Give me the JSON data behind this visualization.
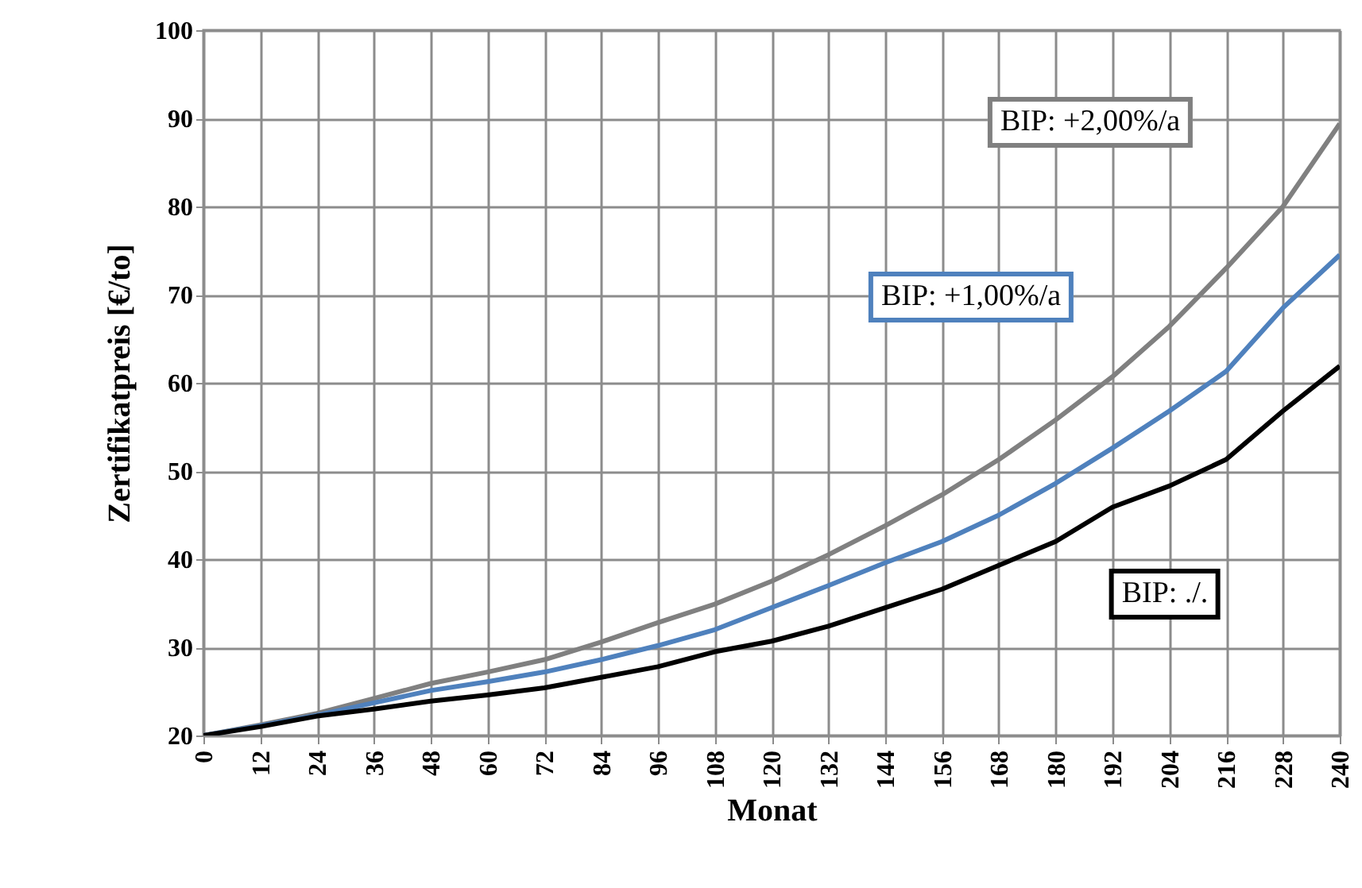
{
  "chart_data": {
    "type": "line",
    "xlabel": "Monat",
    "ylabel": "Zertifikatpreis [€/to]",
    "x": [
      0,
      12,
      24,
      36,
      48,
      60,
      72,
      84,
      96,
      108,
      120,
      132,
      144,
      156,
      168,
      180,
      192,
      204,
      216,
      228,
      240
    ],
    "series": [
      {
        "name": "BIP: +2,00%/a",
        "color": "#808080",
        "values": [
          20,
          21.2,
          22.5,
          24.2,
          25.9,
          27.2,
          28.6,
          30.6,
          32.8,
          34.9,
          37.5,
          40.5,
          43.8,
          47.3,
          51.3,
          55.8,
          60.7,
          66.4,
          73.0,
          80.0,
          89.4
        ]
      },
      {
        "name": "BIP: +1,00%/a",
        "color": "#4f81bd",
        "values": [
          20,
          21.1,
          22.3,
          23.7,
          25.1,
          26.1,
          27.2,
          28.6,
          30.2,
          32.0,
          34.5,
          37.0,
          39.6,
          42.0,
          45.0,
          48.6,
          52.6,
          56.8,
          61.3,
          68.5,
          74.5
        ]
      },
      {
        "name": "BIP: ./.",
        "color": "#000000",
        "values": [
          20,
          21.0,
          22.2,
          23.0,
          23.9,
          24.6,
          25.4,
          26.6,
          27.8,
          29.5,
          30.7,
          32.4,
          34.5,
          36.6,
          39.3,
          42.0,
          45.9,
          48.3,
          51.3,
          56.8,
          61.9
        ]
      }
    ],
    "xlim": [
      0,
      240
    ],
    "xticks": [
      0,
      12,
      24,
      36,
      48,
      60,
      72,
      84,
      96,
      108,
      120,
      132,
      144,
      156,
      168,
      180,
      192,
      204,
      216,
      228,
      240
    ],
    "ylim": [
      20,
      100
    ],
    "yticks": [
      20,
      30,
      40,
      50,
      60,
      70,
      80,
      90,
      100
    ],
    "grid": true,
    "line_style": "solid",
    "marker": "none"
  }
}
